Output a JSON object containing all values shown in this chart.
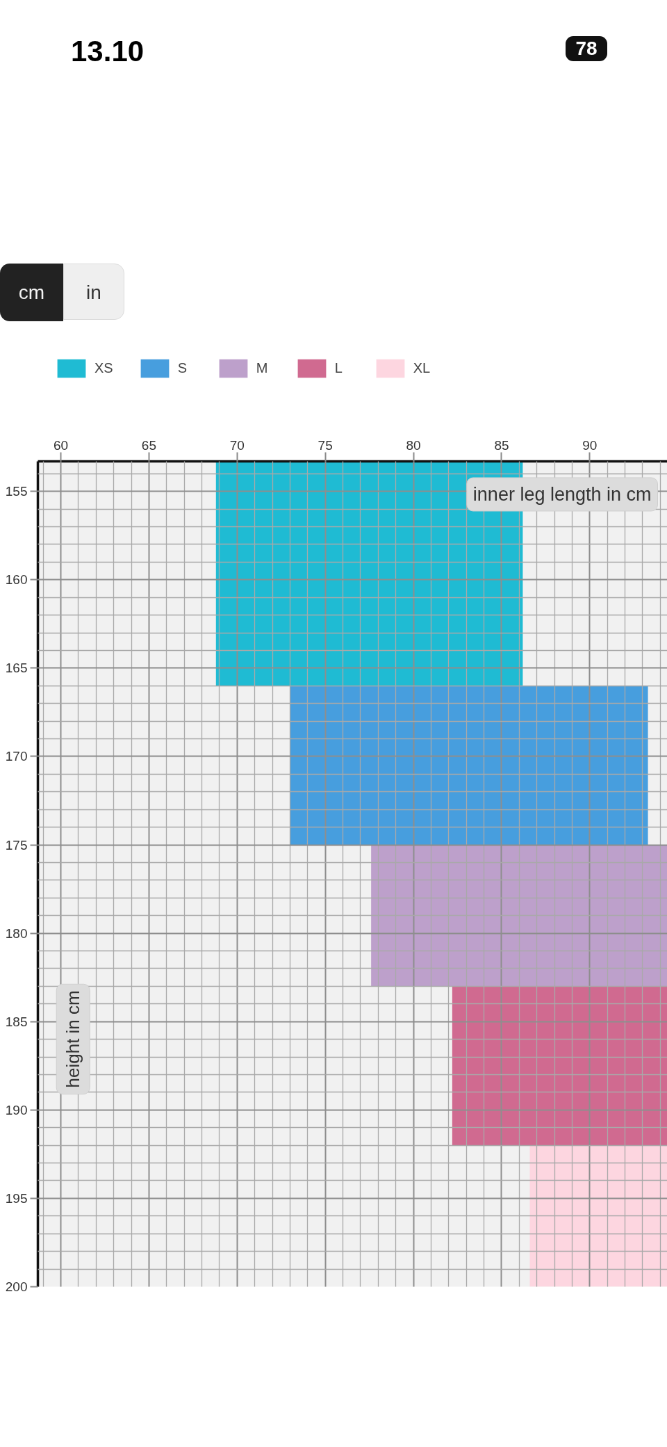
{
  "chart_data": {
    "type": "area",
    "xlabel": "inner leg length in cm",
    "ylabel": "height in cm",
    "annotations": [
      "13.10",
      "78",
      "cm",
      "in"
    ],
    "xlim": [
      58.7,
      94.4
    ],
    "ylim": [
      200,
      153.3
    ],
    "xticks": [
      {
        "value": 59,
        "label": null
      },
      60,
      {
        "value": 61,
        "label": null
      },
      {
        "value": 62,
        "label": null
      },
      {
        "value": 63,
        "label": null
      },
      {
        "value": 64,
        "label": null
      },
      65,
      {
        "value": 66,
        "label": null
      },
      {
        "value": 67,
        "label": null
      },
      {
        "value": 68,
        "label": null
      },
      {
        "value": 69,
        "label": null
      },
      70,
      {
        "value": 71,
        "label": null
      },
      {
        "value": 72,
        "label": null
      },
      {
        "value": 73,
        "label": null
      },
      {
        "value": 74,
        "label": null
      },
      75,
      {
        "value": 76,
        "label": null
      },
      {
        "value": 77,
        "label": null
      },
      {
        "value": 78,
        "label": null
      },
      {
        "value": 79,
        "label": null
      },
      80,
      {
        "value": 81,
        "label": null
      },
      {
        "value": 82,
        "label": null
      },
      {
        "value": 83,
        "label": null
      },
      {
        "value": 84,
        "label": null
      },
      85,
      {
        "value": 86,
        "label": null
      },
      {
        "value": 87,
        "label": null
      },
      {
        "value": 88,
        "label": null
      },
      {
        "value": 89,
        "label": null
      },
      90,
      {
        "value": 91,
        "label": null
      },
      {
        "value": 92,
        "label": null
      },
      {
        "value": 93,
        "label": null
      },
      {
        "value": 94,
        "label": null
      }
    ],
    "yticks": [
      {
        "value": 154,
        "label": null
      },
      155,
      {
        "value": 156,
        "label": null
      },
      {
        "value": 157,
        "label": null
      },
      {
        "value": 158,
        "label": null
      },
      {
        "value": 159,
        "label": null
      },
      160,
      {
        "value": 161,
        "label": null
      },
      {
        "value": 162,
        "label": null
      },
      {
        "value": 163,
        "label": null
      },
      {
        "value": 164,
        "label": null
      },
      165,
      {
        "value": 166,
        "label": null
      },
      {
        "value": 167,
        "label": null
      },
      {
        "value": 168,
        "label": null
      },
      {
        "value": 169,
        "label": null
      },
      170,
      {
        "value": 171,
        "label": null
      },
      {
        "value": 172,
        "label": null
      },
      {
        "value": 173,
        "label": null
      },
      {
        "value": 174,
        "label": null
      },
      175,
      {
        "value": 176,
        "label": null
      },
      {
        "value": 177,
        "label": null
      },
      {
        "value": 178,
        "label": null
      },
      {
        "value": 179,
        "label": null
      },
      180,
      {
        "value": 181,
        "label": null
      },
      {
        "value": 182,
        "label": null
      },
      {
        "value": 183,
        "label": null
      },
      {
        "value": 184,
        "label": null
      },
      185,
      {
        "value": 186,
        "label": null
      },
      {
        "value": 187,
        "label": null
      },
      {
        "value": 188,
        "label": null
      },
      {
        "value": 189,
        "label": null
      },
      190,
      {
        "value": 191,
        "label": null
      },
      {
        "value": 192,
        "label": null
      },
      {
        "value": 193,
        "label": null
      },
      {
        "value": 194,
        "label": null
      },
      195,
      {
        "value": 196,
        "label": null
      },
      {
        "value": 197,
        "label": null
      },
      {
        "value": 198,
        "label": null
      },
      {
        "value": 199,
        "label": null
      },
      200
    ],
    "grid": true,
    "legend": "top left",
    "series": [
      {
        "name": "XS",
        "color": "#1fbbd3",
        "x": [
          68.8,
          86.2
        ],
        "values": [
          null,
          null
        ],
        "lower": [
          153.3,
          153.3
        ],
        "upper": [
          166,
          166
        ]
      },
      {
        "name": "S",
        "color": "#479ede",
        "x": [
          73,
          93.3
        ],
        "values": [
          null,
          null
        ],
        "lower": [
          166,
          166
        ],
        "upper": [
          175,
          175
        ]
      },
      {
        "name": "M",
        "color": "#bda0cb",
        "x": [
          77.6,
          94.4
        ],
        "values": [
          null,
          null
        ],
        "lower": [
          175,
          175
        ],
        "upper": [
          183,
          183
        ]
      },
      {
        "name": "L",
        "color": "#d06a90",
        "x": [
          82.2,
          94.4
        ],
        "values": [
          null,
          null
        ],
        "lower": [
          183,
          183
        ],
        "upper": [
          192,
          192
        ]
      },
      {
        "name": "XL",
        "color": "#fdd6e0",
        "x": [
          86.6,
          94.4
        ],
        "values": [
          null,
          null
        ],
        "lower": [
          192,
          192
        ],
        "upper": [
          200,
          200
        ]
      }
    ]
  }
}
